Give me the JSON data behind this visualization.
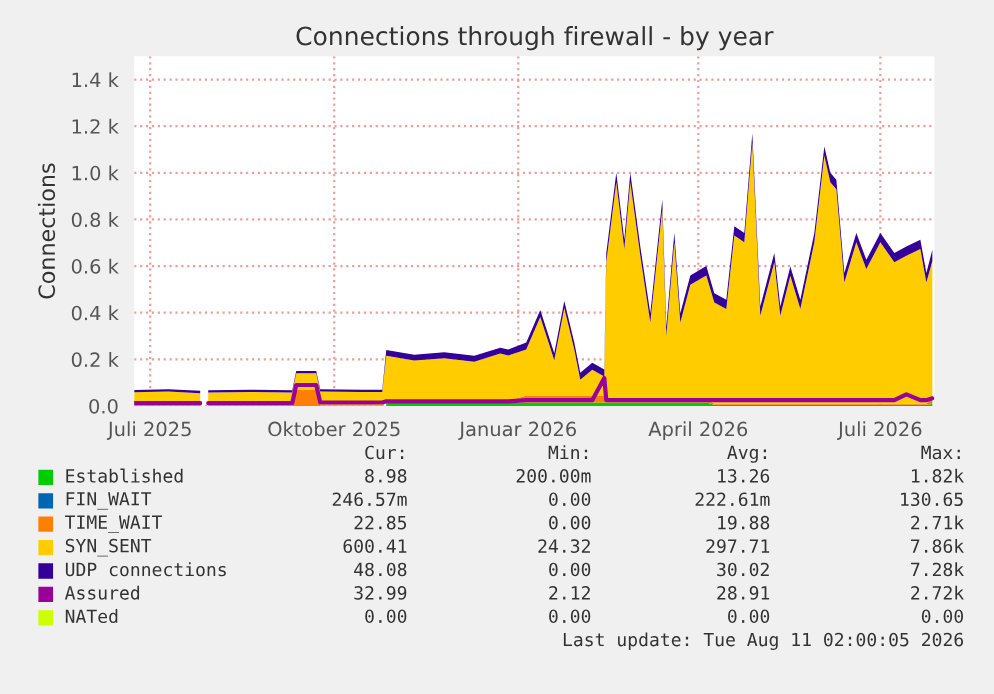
{
  "chart_data": {
    "type": "area",
    "stacked": true,
    "title": "Connections through firewall - by year",
    "ylabel": "Connections",
    "x": [
      "2025-06-23",
      "2025-07-10",
      "2025-07-26",
      "2025-07-28",
      "2025-07-30",
      "2025-08-20",
      "2025-09-10",
      "2025-09-12",
      "2025-09-22",
      "2025-09-24",
      "2025-10-15",
      "2025-10-25",
      "2025-10-27",
      "2025-11-10",
      "2025-11-25",
      "2025-12-10",
      "2025-12-23",
      "2025-12-27",
      "2026-01-05",
      "2026-01-12",
      "2026-01-19",
      "2026-01-24",
      "2026-01-29",
      "2026-02-01",
      "2026-02-07",
      "2026-02-13",
      "2026-02-14",
      "2026-02-19",
      "2026-02-23",
      "2026-02-26",
      "2026-03-03",
      "2026-03-08",
      "2026-03-14",
      "2026-03-16",
      "2026-03-20",
      "2026-03-23",
      "2026-03-28",
      "2026-04-05",
      "2026-04-09",
      "2026-04-15",
      "2026-04-19",
      "2026-04-24",
      "2026-04-28",
      "2026-05-02",
      "2026-05-09",
      "2026-05-12",
      "2026-05-17",
      "2026-05-22",
      "2026-05-29",
      "2026-06-03",
      "2026-06-06",
      "2026-06-09",
      "2026-06-13",
      "2026-06-19",
      "2026-06-24",
      "2026-07-01",
      "2026-07-08",
      "2026-07-14",
      "2026-07-21",
      "2026-07-24",
      "2026-07-27"
    ],
    "series": [
      {
        "name": "Established",
        "color": "#00cc00",
        "values": [
          null,
          null,
          null,
          null,
          null,
          null,
          null,
          null,
          null,
          null,
          null,
          null,
          15,
          15,
          15,
          15,
          15,
          15,
          15,
          15,
          15,
          15,
          15,
          15,
          15,
          15,
          15,
          15,
          15,
          15,
          15,
          15,
          15,
          15,
          15,
          15,
          15,
          15,
          5,
          5,
          5,
          5,
          5,
          5,
          5,
          5,
          5,
          5,
          5,
          5,
          5,
          5,
          5,
          5,
          5,
          5,
          5,
          5,
          5,
          5,
          9
        ]
      },
      {
        "name": "FIN_WAIT",
        "color": "#0066b3",
        "values": [
          null,
          null,
          null,
          null,
          null,
          null,
          null,
          null,
          null,
          null,
          null,
          null,
          null,
          null,
          null,
          null,
          null,
          null,
          null,
          null,
          null,
          null,
          null,
          null,
          null,
          null,
          null,
          null,
          null,
          null,
          null,
          null,
          null,
          null,
          null,
          null,
          null,
          null,
          null,
          null,
          null,
          null,
          null,
          null,
          null,
          null,
          null,
          null,
          null,
          null,
          null,
          null,
          null,
          null,
          null,
          null,
          null,
          null,
          null,
          null,
          null
        ]
      },
      {
        "name": "TIME_WAIT",
        "color": "#ff8000",
        "values": [
          3,
          3,
          3,
          null,
          3,
          3,
          3,
          70,
          70,
          3,
          3,
          3,
          5,
          5,
          5,
          5,
          5,
          5,
          30,
          30,
          30,
          30,
          30,
          30,
          30,
          30,
          15,
          15,
          15,
          15,
          15,
          15,
          15,
          15,
          15,
          15,
          15,
          15,
          5,
          5,
          5,
          5,
          5,
          5,
          5,
          5,
          5,
          5,
          5,
          5,
          5,
          5,
          5,
          5,
          5,
          5,
          5,
          5,
          5,
          5,
          23
        ]
      },
      {
        "name": "SYN_SENT",
        "color": "#ffcc00",
        "values": [
          56,
          59,
          52,
          null,
          55,
          57,
          55,
          70,
          70,
          59,
          57,
          57,
          195,
          175,
          185,
          170,
          205,
          197,
          197,
          337,
          151,
          375,
          197,
          68,
          110,
          82,
          586,
          930,
          643,
          930,
          614,
          328,
          815,
          270,
          672,
          328,
          490,
          530,
          434,
          406,
          721,
          692,
          1120,
          377,
          606,
          377,
          548,
          406,
          692,
          1063,
          950,
          920,
          520,
          692,
          577,
          692,
          606,
          634,
          663,
          520,
          590
        ]
      },
      {
        "name": "UDP connections",
        "color": "#330099",
        "values": [
          10,
          10,
          10,
          null,
          10,
          10,
          10,
          10,
          10,
          10,
          10,
          10,
          25,
          25,
          25,
          25,
          25,
          25,
          30,
          30,
          30,
          30,
          30,
          30,
          30,
          30,
          40,
          40,
          40,
          40,
          40,
          40,
          40,
          40,
          40,
          40,
          40,
          40,
          40,
          40,
          40,
          40,
          40,
          40,
          40,
          40,
          40,
          40,
          40,
          40,
          40,
          40,
          40,
          40,
          40,
          40,
          40,
          40,
          40,
          40,
          48
        ]
      },
      {
        "name": "Assured",
        "type": "line",
        "color": "#990099",
        "values": [
          12,
          12,
          12,
          null,
          12,
          12,
          12,
          90,
          90,
          15,
          15,
          15,
          20,
          20,
          20,
          20,
          20,
          20,
          25,
          25,
          25,
          25,
          25,
          25,
          25,
          120,
          25,
          25,
          25,
          25,
          25,
          25,
          25,
          25,
          25,
          25,
          25,
          25,
          25,
          25,
          25,
          25,
          25,
          25,
          25,
          25,
          25,
          25,
          25,
          25,
          25,
          25,
          25,
          25,
          25,
          25,
          25,
          50,
          25,
          25,
          33
        ]
      },
      {
        "name": "NATed",
        "type": "line",
        "color": "#ccff00",
        "values": [
          null,
          null,
          null,
          null,
          null,
          null,
          null,
          null,
          null,
          null,
          null,
          null,
          null,
          null,
          null,
          null,
          null,
          null,
          null,
          null,
          null,
          null,
          null,
          null,
          null,
          null,
          null,
          null,
          null,
          null,
          null,
          null,
          null,
          null,
          null,
          null,
          null,
          null,
          null,
          null,
          null,
          null,
          null,
          null,
          null,
          null,
          null,
          null,
          null,
          null,
          null,
          null,
          null,
          null,
          null,
          null,
          null,
          null,
          null,
          null,
          null
        ]
      }
    ],
    "xlim": [
      "2025-06-23",
      "2026-07-28"
    ],
    "xticks": [
      {
        "value": "2025-07-01",
        "label": "Juli 2025"
      },
      {
        "value": "2025-10-01",
        "label": "Oktober 2025"
      },
      {
        "value": "2026-01-01",
        "label": "Januar 2026"
      },
      {
        "value": "2026-04-01",
        "label": "April 2026"
      },
      {
        "value": "2026-07-01",
        "label": "Juli 2026"
      }
    ],
    "ylim": [
      0,
      1500
    ],
    "yticks": [
      {
        "value": 0,
        "label": "0.0"
      },
      {
        "value": 200,
        "label": "0.2 k"
      },
      {
        "value": 400,
        "label": "0.4 k"
      },
      {
        "value": 600,
        "label": "0.6 k"
      },
      {
        "value": 800,
        "label": "0.8 k"
      },
      {
        "value": 1000,
        "label": "1.0 k"
      },
      {
        "value": 1200,
        "label": "1.2 k"
      },
      {
        "value": 1400,
        "label": "1.4 k"
      }
    ],
    "grid": true,
    "legend": "bottom",
    "annotations": [
      "Cur: Min: Avg: Max:",
      "8.98 200.00m 13.26 1.82k",
      "246.57m 0.00 222.61m 130.65",
      "22.85 0.00 19.88 2.71k",
      "600.41 24.32 297.71 7.86k",
      "48.08 0.00 30.02 7.28k",
      "32.99 2.12 28.91 2.72k",
      "0.00 0.00 0.00 0.00",
      "Last update: Tue Aug 11 02:00:05 2026"
    ]
  }
}
